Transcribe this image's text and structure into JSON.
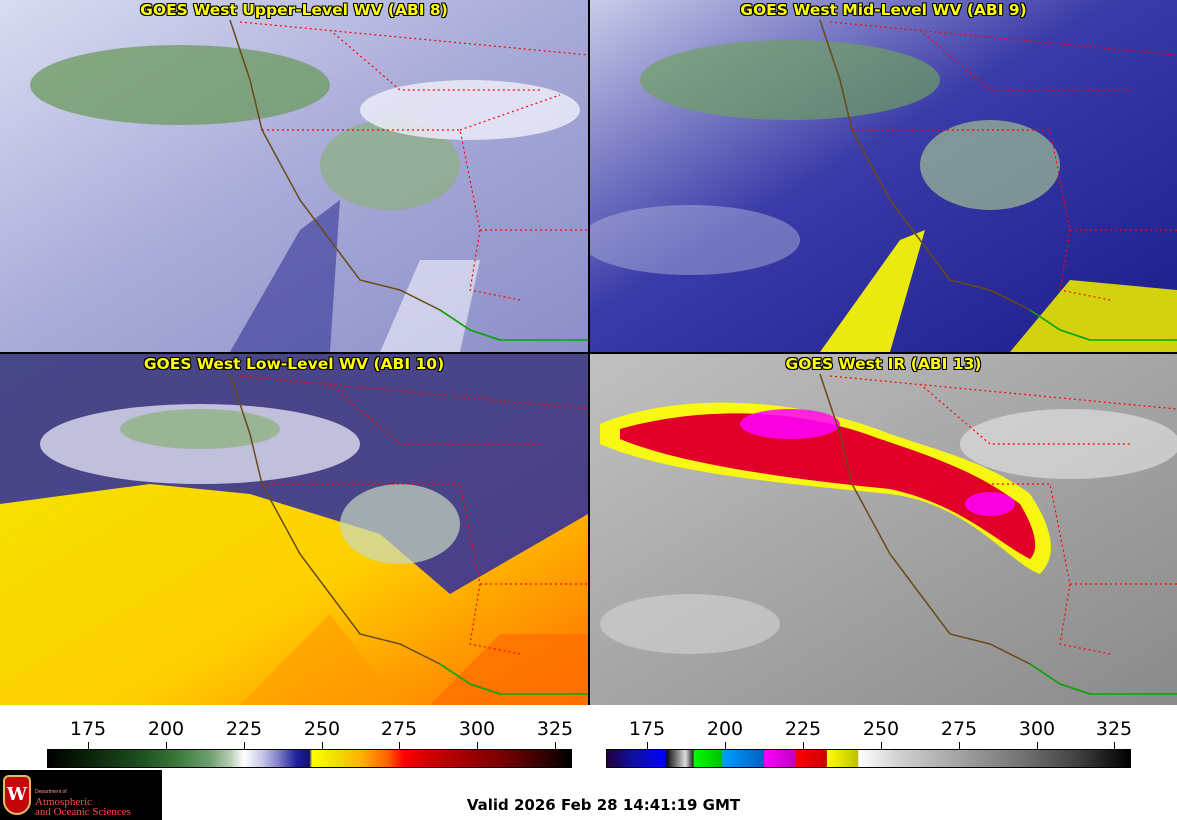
{
  "panels": [
    {
      "title": "GOES West Upper-Level WV (ABI 8)"
    },
    {
      "title": "GOES West Mid-Level WV (ABI 9)"
    },
    {
      "title": "GOES West Low-Level WV (ABI 10)"
    },
    {
      "title": "GOES West IR (ABI 13)"
    }
  ],
  "colorbars": {
    "wv": {
      "ticks": [
        "175",
        "200",
        "225",
        "250",
        "275",
        "300",
        "325"
      ]
    },
    "ir": {
      "ticks": [
        "175",
        "200",
        "225",
        "250",
        "275",
        "300",
        "325"
      ]
    }
  },
  "logo": {
    "department": "Department of",
    "line1": "Atmospheric",
    "line2": "and Oceanic Sciences"
  },
  "valid_time": "Valid 2026 Feb 28 14:41:19 GMT",
  "colors": {
    "title_text": "#ffff00",
    "coastline": "#7a5a1e",
    "state_borders": "#ff0000",
    "mexico_border": "#00aa00"
  }
}
